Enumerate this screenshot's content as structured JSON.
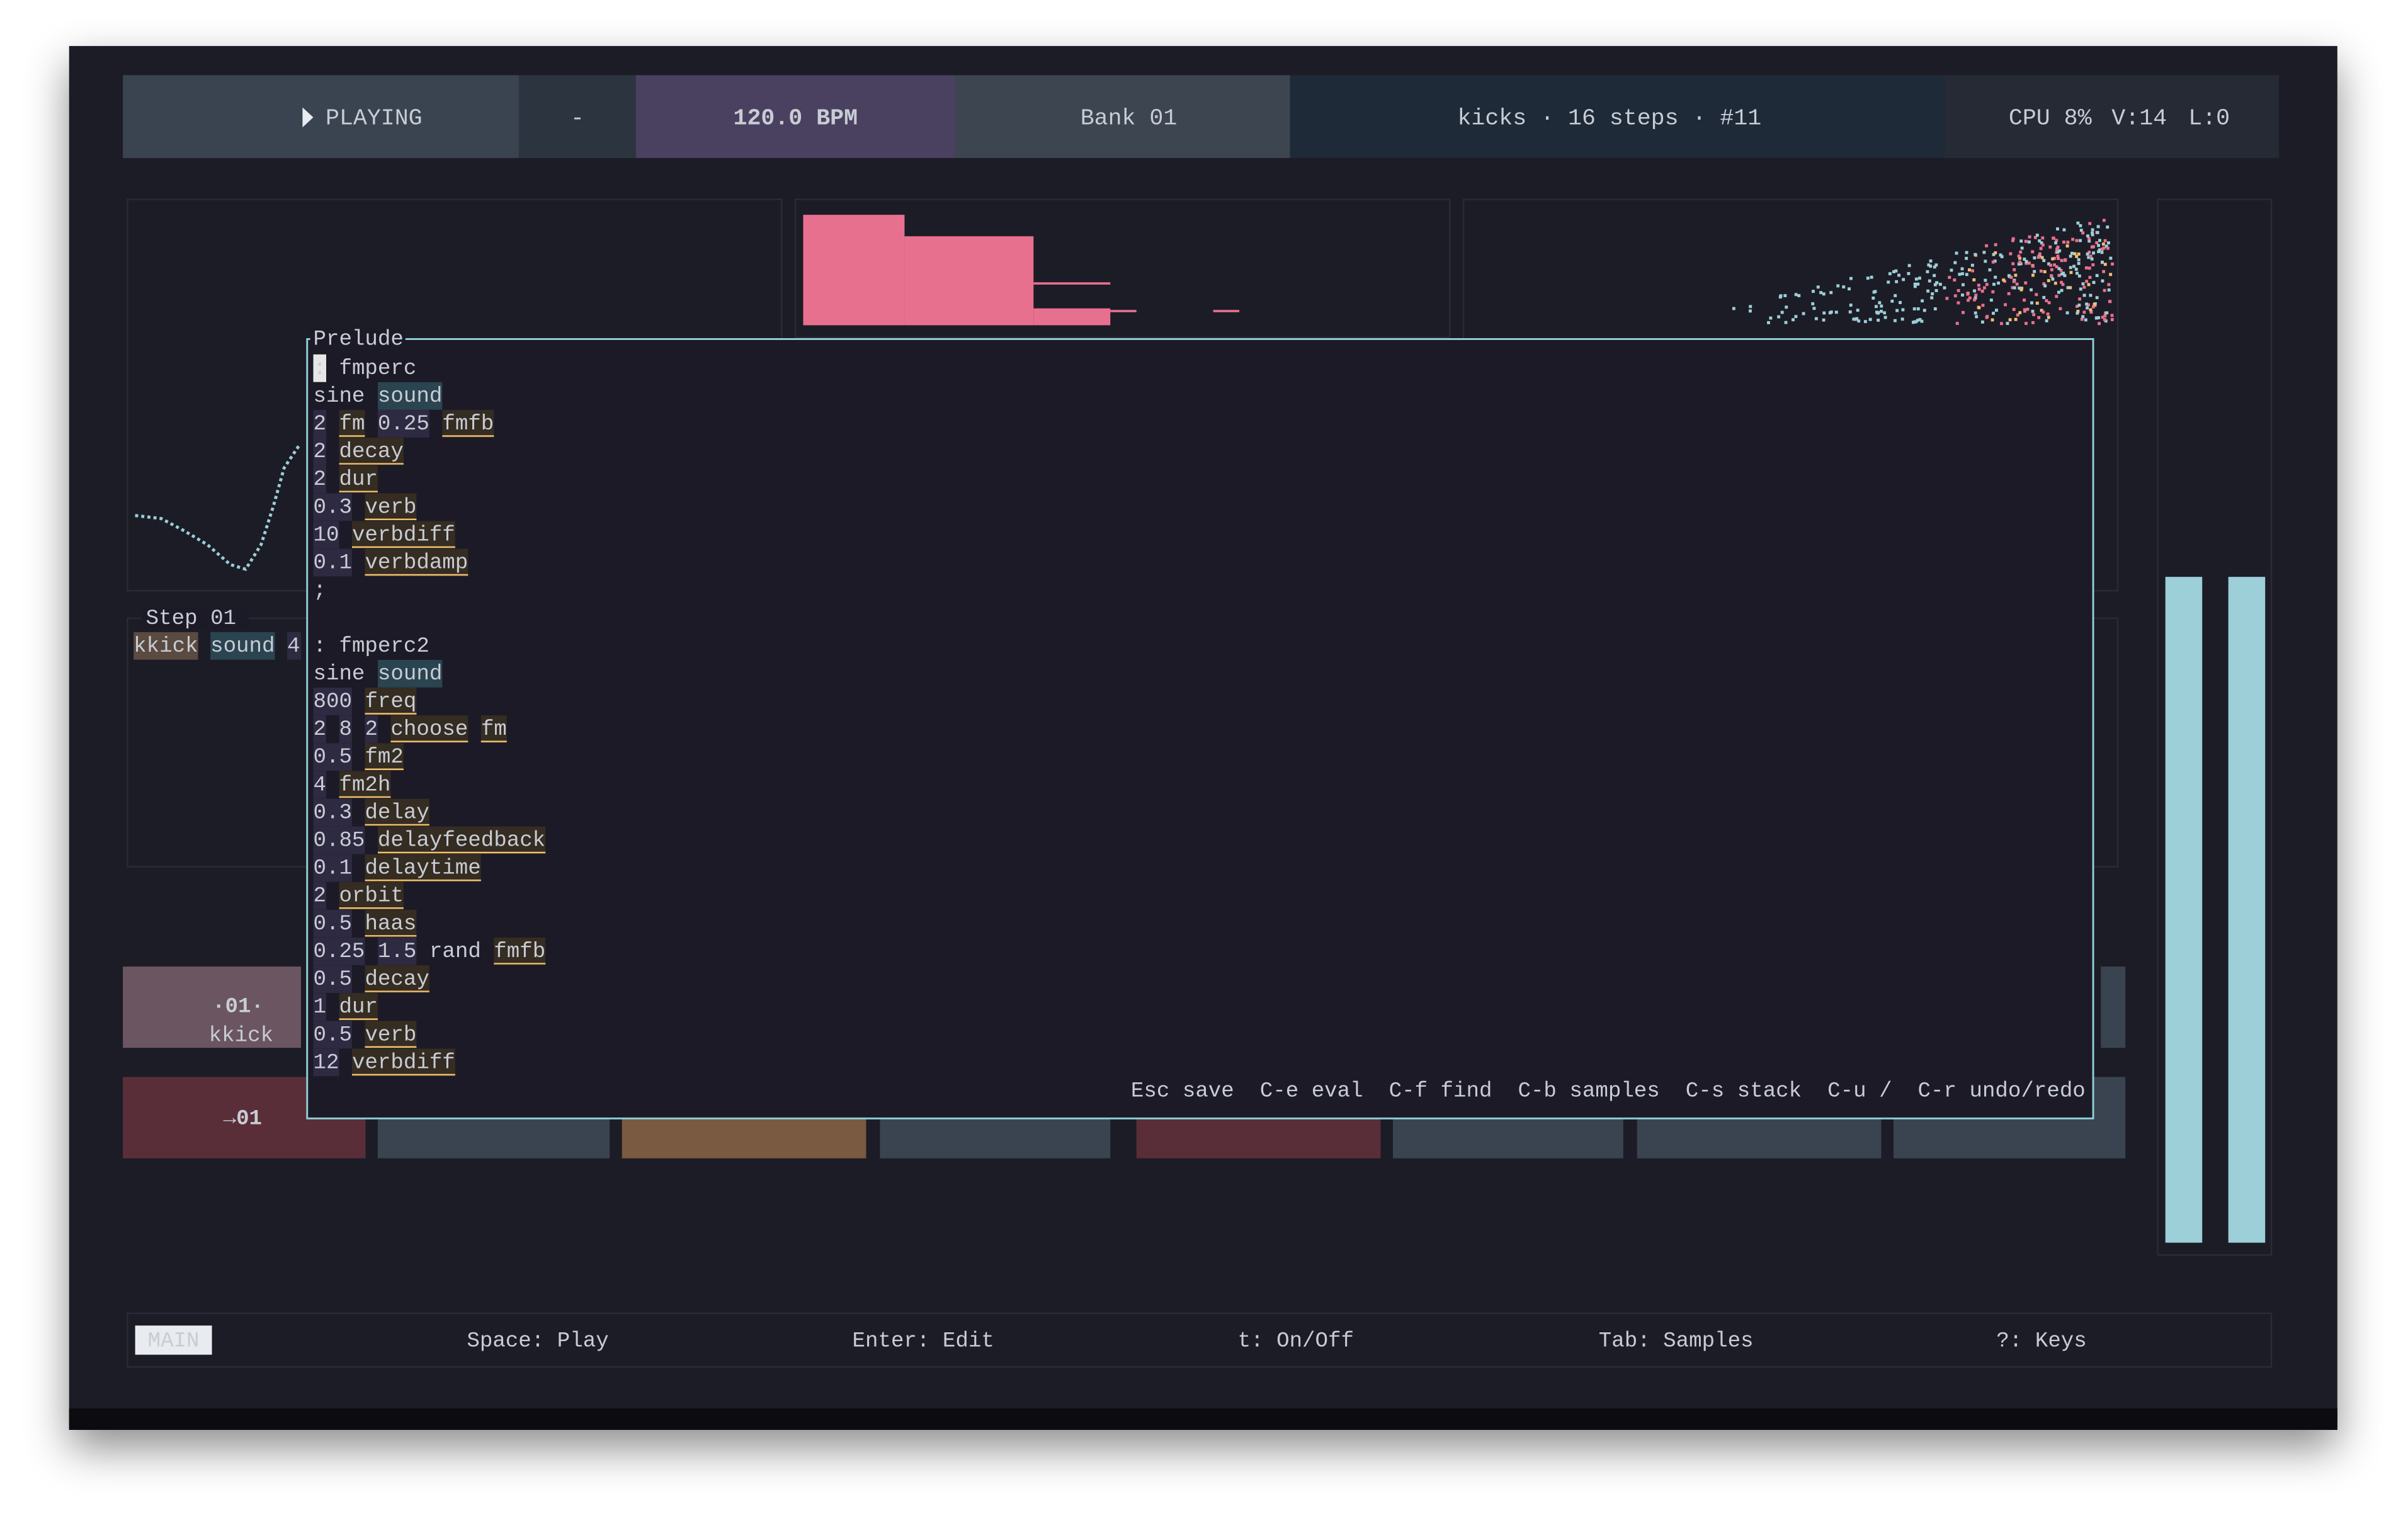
{
  "header": {
    "status": "PLAYING",
    "separator": "-",
    "tempo": "120.0 BPM",
    "bank": "Bank 01",
    "pattern": "kicks · 16 steps · #11",
    "cpu": "CPU 8%",
    "voices": "V:14",
    "latency": "L:0"
  },
  "background": {
    "step_title": "Step 01",
    "step_line": [
      "kkick",
      "sound",
      "4"
    ],
    "step_number": "·01·",
    "step_name": "kkick",
    "current": "→01"
  },
  "editor": {
    "title": "Prelude",
    "lines": [
      [
        [
          ":",
          "#1b1a26",
          "#e6e6e6",
          false
        ],
        [
          "fmperc",
          "#e8708f",
          "transparent",
          false
        ]
      ],
      [
        [
          "sine",
          "#aab4be",
          "transparent",
          false
        ],
        [
          "sound",
          "#cfeaf0",
          "#2a4450",
          false
        ]
      ],
      [
        [
          "2",
          "#b8b0dc",
          "#2d2a42",
          false
        ],
        [
          "fm",
          "#f0c070",
          "#352c22",
          true
        ],
        [
          "0.25",
          "#b8b0dc",
          "#2d2a42",
          false
        ],
        [
          "fmfb",
          "#f0c070",
          "#352c22",
          true
        ]
      ],
      [
        [
          "2",
          "#b8b0dc",
          "#2d2a42",
          false
        ],
        [
          "decay",
          "#f0c070",
          "#352c22",
          true
        ]
      ],
      [
        [
          "2",
          "#b8b0dc",
          "#2d2a42",
          false
        ],
        [
          "dur",
          "#f0c070",
          "#352c22",
          true
        ]
      ],
      [
        [
          "0.3",
          "#b8b0dc",
          "#2d2a42",
          false
        ],
        [
          "verb",
          "#f0c070",
          "#352c22",
          true
        ]
      ],
      [
        [
          "10",
          "#b8b0dc",
          "#2d2a42",
          false
        ],
        [
          "verbdiff",
          "#f0c070",
          "#352c22",
          true
        ]
      ],
      [
        [
          "0.1",
          "#b8b0dc",
          "#2d2a42",
          false
        ],
        [
          "verbdamp",
          "#f0c070",
          "#352c22",
          true
        ]
      ],
      [
        [
          ";",
          "#f0c070",
          "transparent",
          false
        ]
      ],
      [],
      [
        [
          ":",
          "#f0c070",
          "transparent",
          false
        ],
        [
          "fmperc2",
          "#e8708f",
          "transparent",
          false
        ]
      ],
      [
        [
          "sine",
          "#aab4be",
          "transparent",
          false
        ],
        [
          "sound",
          "#cfeaf0",
          "#2a4450",
          false
        ]
      ],
      [
        [
          "800",
          "#b8b0dc",
          "#2d2a42",
          false
        ],
        [
          "freq",
          "#f0c070",
          "#352c22",
          true
        ]
      ],
      [
        [
          "2",
          "#b8b0dc",
          "#2d2a42",
          false
        ],
        [
          "8",
          "#b8b0dc",
          "#2d2a42",
          false
        ],
        [
          "2",
          "#b8b0dc",
          "#2d2a42",
          false
        ],
        [
          "choose",
          "#f0c070",
          "#352c22",
          true
        ],
        [
          "fm",
          "#f0c070",
          "#352c22",
          true
        ]
      ],
      [
        [
          "0.5",
          "#b8b0dc",
          "#2d2a42",
          false
        ],
        [
          "fm2",
          "#f0c070",
          "#352c22",
          true
        ]
      ],
      [
        [
          "4",
          "#b8b0dc",
          "#2d2a42",
          false
        ],
        [
          "fm2h",
          "#f0c070",
          "#352c22",
          true
        ]
      ],
      [
        [
          "0.3",
          "#b8b0dc",
          "#2d2a42",
          false
        ],
        [
          "delay",
          "#f0c070",
          "#352c22",
          true
        ]
      ],
      [
        [
          "0.85",
          "#b8b0dc",
          "#2d2a42",
          false
        ],
        [
          "delayfeedback",
          "#f0c070",
          "#352c22",
          true
        ]
      ],
      [
        [
          "0.1",
          "#b8b0dc",
          "#2d2a42",
          false
        ],
        [
          "delaytime",
          "#f0c070",
          "#352c22",
          true
        ]
      ],
      [
        [
          "2",
          "#b8b0dc",
          "#2d2a42",
          false
        ],
        [
          "orbit",
          "#f0c070",
          "#352c22",
          true
        ]
      ],
      [
        [
          "0.5",
          "#b8b0dc",
          "#2d2a42",
          false
        ],
        [
          "haas",
          "#f0c070",
          "#352c22",
          true
        ]
      ],
      [
        [
          "0.25",
          "#b8b0dc",
          "#2d2a42",
          false
        ],
        [
          "1.5",
          "#b8b0dc",
          "#2d2a42",
          false
        ],
        [
          "rand",
          "#f0c070",
          "transparent",
          false
        ],
        [
          "fmfb",
          "#f0c070",
          "#352c22",
          true
        ]
      ],
      [
        [
          "0.5",
          "#b8b0dc",
          "#2d2a42",
          false
        ],
        [
          "decay",
          "#f0c070",
          "#352c22",
          true
        ]
      ],
      [
        [
          "1",
          "#b8b0dc",
          "#2d2a42",
          false
        ],
        [
          "dur",
          "#f0c070",
          "#352c22",
          true
        ]
      ],
      [
        [
          "0.5",
          "#b8b0dc",
          "#2d2a42",
          false
        ],
        [
          "verb",
          "#f0c070",
          "#352c22",
          true
        ]
      ],
      [
        [
          "12",
          "#b8b0dc",
          "#2d2a42",
          false
        ],
        [
          "verbdiff",
          "#f0c070",
          "#352c22",
          true
        ]
      ]
    ],
    "hints": [
      [
        "Esc",
        "save"
      ],
      [
        "C-e",
        "eval"
      ],
      [
        "C-f",
        "find"
      ],
      [
        "C-b",
        "samples"
      ],
      [
        "C-s",
        "stack"
      ],
      [
        "C-u",
        "/"
      ],
      [
        "C-r",
        "undo/redo"
      ]
    ]
  },
  "footer": {
    "mode": "MAIN",
    "hints": [
      [
        "Space:",
        "Play"
      ],
      [
        "Enter:",
        "Edit"
      ],
      [
        "t:",
        "On/Off"
      ],
      [
        "Tab:",
        "Samples"
      ],
      [
        "?:",
        "Keys"
      ]
    ]
  }
}
